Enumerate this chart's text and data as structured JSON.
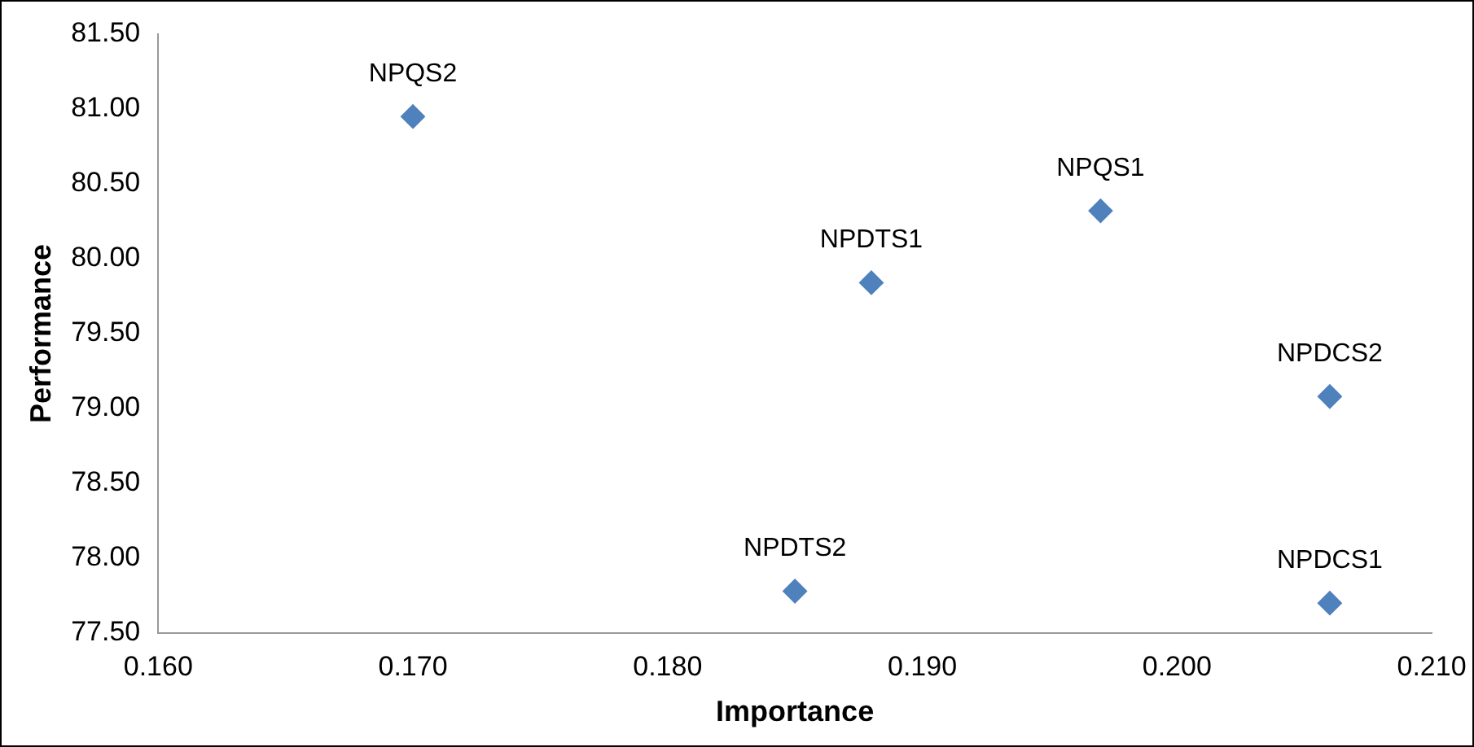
{
  "chart_data": {
    "type": "scatter",
    "xlabel": "Importance",
    "ylabel": "Performance",
    "x": [
      0.17,
      0.188,
      0.197,
      0.206,
      0.185,
      0.206
    ],
    "values": [
      80.95,
      79.84,
      80.32,
      79.08,
      77.78,
      77.7
    ],
    "color": "#4f81bd",
    "marker": "diamond",
    "grid": false,
    "legend": false,
    "xlim": [
      0.16,
      0.21
    ],
    "xticks": [
      {
        "value": 0.16,
        "label": "0.160"
      },
      {
        "value": 0.17,
        "label": "0.170"
      },
      {
        "value": 0.18,
        "label": "0.180"
      },
      {
        "value": 0.19,
        "label": "0.190"
      },
      {
        "value": 0.2,
        "label": "0.200"
      },
      {
        "value": 0.21,
        "label": "0.210"
      }
    ],
    "ylim": [
      77.5,
      81.5
    ],
    "yticks": [
      {
        "value": 77.5,
        "label": "77.50"
      },
      {
        "value": 78,
        "label": "78.00"
      },
      {
        "value": 78.5,
        "label": "78.50"
      },
      {
        "value": 79,
        "label": "79.00"
      },
      {
        "value": 79.5,
        "label": "79.50"
      },
      {
        "value": 80,
        "label": "80.00"
      },
      {
        "value": 80.5,
        "label": "80.50"
      },
      {
        "value": 81,
        "label": "81.00"
      },
      {
        "value": 81.5,
        "label": "81.50"
      }
    ],
    "annotations": [
      {
        "text": "NPQS2",
        "x": 0.17,
        "y": 80.95
      },
      {
        "text": "NPDTS1",
        "x": 0.188,
        "y": 79.84
      },
      {
        "text": "NPQS1",
        "x": 0.197,
        "y": 80.32
      },
      {
        "text": "NPDCS2",
        "x": 0.206,
        "y": 79.08
      },
      {
        "text": "NPDTS2",
        "x": 0.185,
        "y": 77.78
      },
      {
        "text": "NPDCS1",
        "x": 0.206,
        "y": 77.7
      }
    ]
  }
}
